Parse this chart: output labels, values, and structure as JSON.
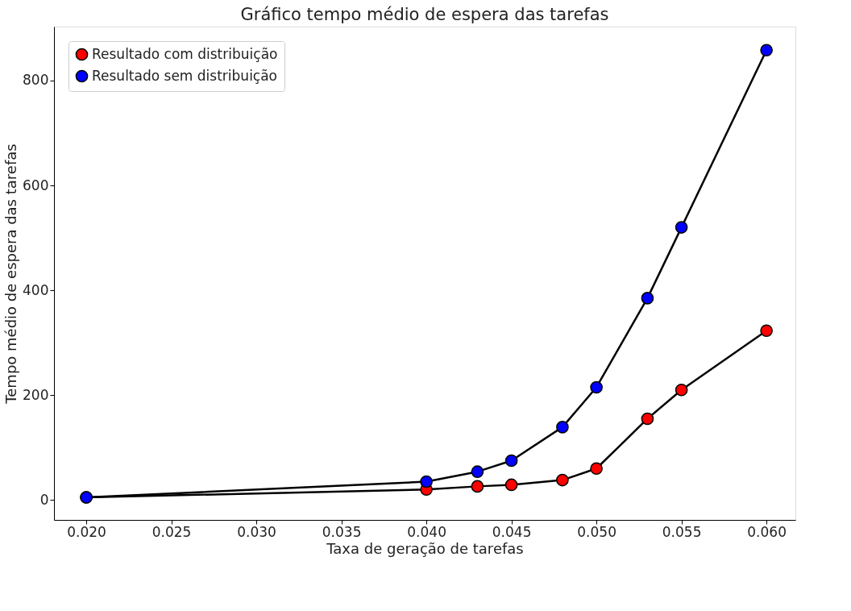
{
  "chart_data": {
    "type": "line",
    "title": "Gráfico tempo médio de espera das tarefas",
    "xlabel": "Taxa de geração de tarefas",
    "ylabel": "Tempo médio de espera das tarefas",
    "x": [
      0.02,
      0.04,
      0.043,
      0.045,
      0.048,
      0.05,
      0.053,
      0.055,
      0.06
    ],
    "series": [
      {
        "name": "Resultado com distribuição",
        "color": "#ff0000",
        "values": [
          5,
          20,
          26,
          29,
          38,
          60,
          155,
          210,
          323
        ]
      },
      {
        "name": "Resultado sem distribuição",
        "color": "#0000ff",
        "values": [
          5,
          35,
          54,
          75,
          139,
          215,
          385,
          520,
          858
        ]
      }
    ],
    "xlim": [
      0.0181,
      0.0617
    ],
    "xticks": [
      {
        "value": 0.02,
        "label": "0.020"
      },
      0.025,
      {
        "value": 0.03,
        "label": "0.030"
      },
      0.035,
      {
        "value": 0.04,
        "label": "0.040"
      },
      0.045,
      {
        "value": 0.05,
        "label": "0.050"
      },
      0.055,
      {
        "value": 0.06,
        "label": "0.060"
      }
    ],
    "ylim": [
      -38,
      903
    ],
    "yticks": [
      0,
      200,
      400,
      600,
      800
    ],
    "marker": "circle",
    "line_style": "solid",
    "legend": "top left",
    "grid": false
  }
}
